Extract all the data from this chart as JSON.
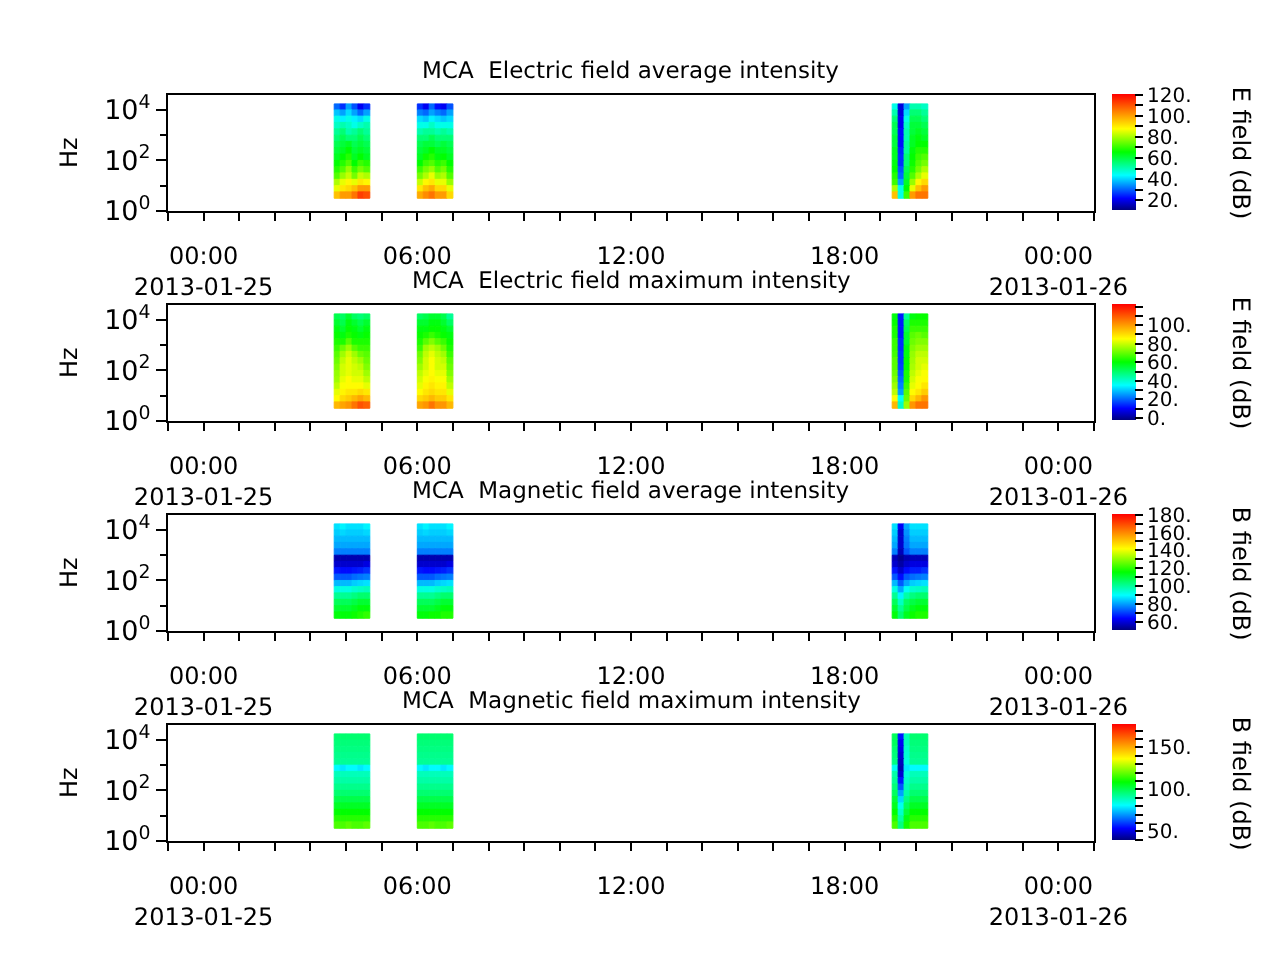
{
  "chart_data": [
    {
      "type": "heatmap",
      "title": "MCA  Electric field average intensity",
      "ylabel": "Hz",
      "clabel": "E field (dB)",
      "x": [
        "2013-01-25T03:45",
        "2013-01-25T03:55",
        "2013-01-25T04:05",
        "2013-01-25T04:15",
        "2013-01-25T04:25",
        "2013-01-25T04:35",
        "2013-01-25T04:45",
        "2013-01-25T05:55",
        "2013-01-25T06:05",
        "2013-01-25T06:15",
        "2013-01-25T06:25",
        "2013-01-25T06:35",
        "2013-01-25T06:45",
        "2013-01-25T06:55",
        "2013-01-25T07:05",
        "2013-01-25T19:15",
        "2013-01-25T19:25",
        "2013-01-25T19:35",
        "2013-01-25T19:45",
        "2013-01-25T19:55",
        "2013-01-25T20:05",
        "2013-01-25T20:15"
      ],
      "y": [
        13000,
        7500,
        4200,
        2400,
        1300,
        750,
        420,
        240,
        130,
        75,
        42,
        24,
        13,
        7.5,
        4.2
      ],
      "cells": [
        [
          30,
          25,
          35,
          28,
          20,
          25,
          null,
          null,
          25,
          20,
          30,
          22,
          20,
          28,
          null,
          null,
          45,
          18,
          35,
          50,
          50,
          48
        ],
        [
          38,
          35,
          40,
          35,
          30,
          35,
          null,
          null,
          32,
          30,
          35,
          32,
          30,
          35,
          null,
          null,
          50,
          18,
          40,
          55,
          55,
          52
        ],
        [
          45,
          42,
          45,
          42,
          40,
          45,
          null,
          null,
          40,
          38,
          42,
          40,
          38,
          40,
          null,
          null,
          55,
          20,
          45,
          58,
          58,
          55
        ],
        [
          48,
          50,
          48,
          45,
          48,
          50,
          null,
          null,
          45,
          45,
          48,
          45,
          45,
          45,
          null,
          null,
          58,
          20,
          48,
          60,
          60,
          58
        ],
        [
          52,
          55,
          50,
          52,
          55,
          52,
          null,
          null,
          50,
          52,
          52,
          50,
          52,
          50,
          null,
          null,
          58,
          22,
          50,
          60,
          62,
          60
        ],
        [
          55,
          58,
          55,
          55,
          58,
          55,
          null,
          null,
          55,
          55,
          58,
          55,
          55,
          55,
          null,
          null,
          60,
          22,
          50,
          62,
          64,
          62
        ],
        [
          58,
          60,
          62,
          58,
          60,
          58,
          null,
          null,
          58,
          60,
          60,
          58,
          60,
          58,
          null,
          null,
          60,
          22,
          52,
          62,
          65,
          65
        ],
        [
          60,
          62,
          65,
          60,
          62,
          60,
          null,
          null,
          60,
          62,
          65,
          62,
          62,
          60,
          null,
          null,
          62,
          24,
          52,
          64,
          68,
          68
        ],
        [
          62,
          65,
          68,
          62,
          65,
          62,
          null,
          null,
          62,
          66,
          68,
          64,
          65,
          62,
          null,
          null,
          62,
          25,
          55,
          65,
          70,
          72
        ],
        [
          65,
          68,
          72,
          65,
          70,
          68,
          null,
          null,
          65,
          70,
          72,
          68,
          70,
          65,
          null,
          null,
          64,
          25,
          55,
          66,
          72,
          75
        ],
        [
          68,
          72,
          78,
          70,
          75,
          72,
          null,
          null,
          70,
          75,
          78,
          72,
          75,
          68,
          null,
          null,
          65,
          28,
          58,
          68,
          75,
          80
        ],
        [
          72,
          78,
          82,
          75,
          82,
          80,
          null,
          null,
          75,
          80,
          85,
          78,
          80,
          72,
          null,
          null,
          68,
          30,
          60,
          72,
          80,
          85
        ],
        [
          80,
          85,
          88,
          85,
          90,
          88,
          null,
          null,
          82,
          88,
          90,
          85,
          85,
          78,
          null,
          null,
          70,
          35,
          62,
          78,
          88,
          92
        ],
        [
          85,
          90,
          92,
          95,
          100,
          100,
          null,
          null,
          90,
          95,
          98,
          92,
          92,
          85,
          null,
          null,
          80,
          45,
          65,
          85,
          95,
          100
        ],
        [
          95,
          100,
          100,
          105,
          112,
          110,
          null,
          null,
          98,
          102,
          105,
          100,
          100,
          92,
          null,
          null,
          95,
          45,
          70,
          100,
          105,
          105
        ]
      ],
      "xlim": [
        "2013-01-24T23:00",
        "2013-01-26T01:00"
      ],
      "xticks": [
        {
          "value": "2013-01-24T23:00",
          "label": null
        },
        {
          "value": "2013-01-25T00:00",
          "label": "00:00\n2013-01-25"
        },
        {
          "value": "2013-01-25T01:00",
          "label": null
        },
        {
          "value": "2013-01-25T02:00",
          "label": null
        },
        {
          "value": "2013-01-25T03:00",
          "label": null
        },
        {
          "value": "2013-01-25T04:00",
          "label": null
        },
        {
          "value": "2013-01-25T05:00",
          "label": null
        },
        {
          "value": "2013-01-25T06:00",
          "label": "06:00"
        },
        {
          "value": "2013-01-25T07:00",
          "label": null
        },
        {
          "value": "2013-01-25T08:00",
          "label": null
        },
        {
          "value": "2013-01-25T09:00",
          "label": null
        },
        {
          "value": "2013-01-25T10:00",
          "label": null
        },
        {
          "value": "2013-01-25T11:00",
          "label": null
        },
        {
          "value": "2013-01-25T12:00",
          "label": "12:00"
        },
        {
          "value": "2013-01-25T13:00",
          "label": null
        },
        {
          "value": "2013-01-25T14:00",
          "label": null
        },
        {
          "value": "2013-01-25T15:00",
          "label": null
        },
        {
          "value": "2013-01-25T16:00",
          "label": null
        },
        {
          "value": "2013-01-25T17:00",
          "label": null
        },
        {
          "value": "2013-01-25T18:00",
          "label": "18:00"
        },
        {
          "value": "2013-01-25T19:00",
          "label": null
        },
        {
          "value": "2013-01-25T20:00",
          "label": null
        },
        {
          "value": "2013-01-25T21:00",
          "label": null
        },
        {
          "value": "2013-01-25T22:00",
          "label": null
        },
        {
          "value": "2013-01-25T23:00",
          "label": null
        },
        {
          "value": "2013-01-26T00:00",
          "label": "00:00\n2013-01-26"
        },
        {
          "value": "2013-01-26T01:00",
          "label": null
        }
      ],
      "ylim": [
        1,
        40000
      ],
      "yticks": [
        {
          "value": 1,
          "label": "10$^{0}$"
        },
        {
          "value": 10,
          "label": null
        },
        {
          "value": 100,
          "label": "10$^{2}$"
        },
        {
          "value": 1000,
          "label": null
        },
        {
          "value": 10000,
          "label": "10$^{4}$"
        }
      ],
      "log": "y",
      "clim": [
        10,
        120
      ],
      "cticks": [
        {
          "value": 20,
          "label": "20."
        },
        {
          "value": 30,
          "label": null
        },
        {
          "value": 40,
          "label": "40."
        },
        {
          "value": 50,
          "label": null
        },
        {
          "value": 60,
          "label": "60."
        },
        {
          "value": 70,
          "label": null
        },
        {
          "value": 80,
          "label": "80."
        },
        {
          "value": 90,
          "label": null
        },
        {
          "value": 100,
          "label": "100."
        },
        {
          "value": 110,
          "label": null
        },
        {
          "value": 120,
          "label": "120."
        }
      ]
    },
    {
      "type": "heatmap",
      "title": "MCA  Electric field maximum intensity",
      "ylabel": "Hz",
      "clabel": "E field (dB)",
      "x": [
        "2013-01-25T03:45",
        "2013-01-25T03:55",
        "2013-01-25T04:05",
        "2013-01-25T04:15",
        "2013-01-25T04:25",
        "2013-01-25T04:35",
        "2013-01-25T04:45",
        "2013-01-25T05:55",
        "2013-01-25T06:05",
        "2013-01-25T06:15",
        "2013-01-25T06:25",
        "2013-01-25T06:35",
        "2013-01-25T06:45",
        "2013-01-25T06:55",
        "2013-01-25T07:05",
        "2013-01-25T19:15",
        "2013-01-25T19:25",
        "2013-01-25T19:35",
        "2013-01-25T19:45",
        "2013-01-25T19:55",
        "2013-01-25T20:05",
        "2013-01-25T20:15"
      ],
      "y": [
        13000,
        7500,
        4200,
        2400,
        1300,
        750,
        420,
        240,
        130,
        75,
        42,
        24,
        13,
        7.5,
        4.2
      ],
      "cells": [
        [
          52,
          50,
          55,
          50,
          48,
          50,
          null,
          null,
          50,
          52,
          55,
          55,
          52,
          45,
          null,
          null,
          58,
          12,
          45,
          58,
          60,
          60
        ],
        [
          55,
          52,
          58,
          55,
          52,
          55,
          null,
          null,
          55,
          55,
          58,
          58,
          55,
          50,
          null,
          null,
          60,
          12,
          50,
          62,
          62,
          62
        ],
        [
          58,
          55,
          60,
          58,
          55,
          58,
          null,
          null,
          58,
          58,
          60,
          60,
          58,
          55,
          null,
          null,
          62,
          12,
          52,
          65,
          65,
          65
        ],
        [
          60,
          58,
          62,
          60,
          58,
          60,
          null,
          null,
          60,
          62,
          65,
          62,
          60,
          58,
          null,
          null,
          62,
          12,
          55,
          68,
          70,
          68
        ],
        [
          62,
          62,
          68,
          62,
          62,
          62,
          null,
          null,
          62,
          68,
          72,
          68,
          65,
          60,
          null,
          null,
          65,
          14,
          55,
          70,
          72,
          72
        ],
        [
          65,
          70,
          75,
          68,
          65,
          65,
          null,
          null,
          65,
          75,
          78,
          75,
          70,
          62,
          null,
          null,
          65,
          14,
          58,
          72,
          75,
          75
        ],
        [
          68,
          75,
          80,
          75,
          70,
          68,
          null,
          null,
          70,
          78,
          82,
          78,
          75,
          65,
          null,
          null,
          66,
          15,
          58,
          74,
          78,
          78
        ],
        [
          70,
          78,
          82,
          78,
          75,
          70,
          null,
          null,
          72,
          80,
          84,
          80,
          78,
          68,
          null,
          null,
          68,
          15,
          60,
          75,
          80,
          80
        ],
        [
          72,
          80,
          82,
          80,
          78,
          72,
          null,
          null,
          75,
          80,
          84,
          80,
          80,
          70,
          null,
          null,
          68,
          16,
          60,
          76,
          80,
          82
        ],
        [
          74,
          80,
          82,
          80,
          80,
          75,
          null,
          null,
          78,
          82,
          85,
          82,
          82,
          72,
          null,
          null,
          70,
          18,
          62,
          78,
          82,
          84
        ],
        [
          75,
          82,
          85,
          82,
          82,
          78,
          null,
          null,
          80,
          84,
          86,
          84,
          84,
          75,
          null,
          null,
          72,
          20,
          62,
          80,
          84,
          85
        ],
        [
          78,
          84,
          85,
          85,
          85,
          82,
          null,
          null,
          82,
          86,
          88,
          86,
          86,
          78,
          null,
          null,
          75,
          22,
          65,
          82,
          85,
          88
        ],
        [
          82,
          86,
          88,
          88,
          90,
          88,
          null,
          null,
          85,
          88,
          90,
          88,
          88,
          82,
          null,
          null,
          78,
          25,
          68,
          85,
          88,
          92
        ],
        [
          85,
          90,
          92,
          95,
          98,
          95,
          null,
          null,
          90,
          92,
          95,
          92,
          92,
          88,
          null,
          null,
          85,
          35,
          70,
          90,
          95,
          100
        ],
        [
          95,
          98,
          100,
          105,
          110,
          108,
          null,
          null,
          98,
          100,
          105,
          100,
          100,
          95,
          null,
          null,
          95,
          40,
          75,
          100,
          105,
          105
        ]
      ],
      "xlim": [
        "2013-01-24T23:00",
        "2013-01-26T01:00"
      ],
      "xticks": [
        {
          "value": "2013-01-24T23:00",
          "label": null
        },
        {
          "value": "2013-01-25T00:00",
          "label": "00:00\n2013-01-25"
        },
        {
          "value": "2013-01-25T01:00",
          "label": null
        },
        {
          "value": "2013-01-25T02:00",
          "label": null
        },
        {
          "value": "2013-01-25T03:00",
          "label": null
        },
        {
          "value": "2013-01-25T04:00",
          "label": null
        },
        {
          "value": "2013-01-25T05:00",
          "label": null
        },
        {
          "value": "2013-01-25T06:00",
          "label": "06:00"
        },
        {
          "value": "2013-01-25T07:00",
          "label": null
        },
        {
          "value": "2013-01-25T08:00",
          "label": null
        },
        {
          "value": "2013-01-25T09:00",
          "label": null
        },
        {
          "value": "2013-01-25T10:00",
          "label": null
        },
        {
          "value": "2013-01-25T11:00",
          "label": null
        },
        {
          "value": "2013-01-25T12:00",
          "label": "12:00"
        },
        {
          "value": "2013-01-25T13:00",
          "label": null
        },
        {
          "value": "2013-01-25T14:00",
          "label": null
        },
        {
          "value": "2013-01-25T15:00",
          "label": null
        },
        {
          "value": "2013-01-25T16:00",
          "label": null
        },
        {
          "value": "2013-01-25T17:00",
          "label": null
        },
        {
          "value": "2013-01-25T18:00",
          "label": "18:00"
        },
        {
          "value": "2013-01-25T19:00",
          "label": null
        },
        {
          "value": "2013-01-25T20:00",
          "label": null
        },
        {
          "value": "2013-01-25T21:00",
          "label": null
        },
        {
          "value": "2013-01-25T22:00",
          "label": null
        },
        {
          "value": "2013-01-25T23:00",
          "label": null
        },
        {
          "value": "2013-01-26T00:00",
          "label": "00:00\n2013-01-26"
        },
        {
          "value": "2013-01-26T01:00",
          "label": null
        }
      ],
      "ylim": [
        1,
        40000
      ],
      "yticks": [
        {
          "value": 1,
          "label": "10$^{0}$"
        },
        {
          "value": 10,
          "label": null
        },
        {
          "value": 100,
          "label": "10$^{2}$"
        },
        {
          "value": 1000,
          "label": null
        },
        {
          "value": 10000,
          "label": "10$^{4}$"
        }
      ],
      "log": "y",
      "clim": [
        -3,
        122
      ],
      "cticks": [
        {
          "value": 0,
          "label": "0."
        },
        {
          "value": 10,
          "label": null
        },
        {
          "value": 20,
          "label": "20."
        },
        {
          "value": 30,
          "label": null
        },
        {
          "value": 40,
          "label": "40."
        },
        {
          "value": 50,
          "label": null
        },
        {
          "value": 60,
          "label": "60."
        },
        {
          "value": 70,
          "label": null
        },
        {
          "value": 80,
          "label": "80."
        },
        {
          "value": 90,
          "label": null
        },
        {
          "value": 100,
          "label": "100."
        },
        {
          "value": 110,
          "label": null
        },
        {
          "value": 120,
          "label": null
        }
      ]
    },
    {
      "type": "heatmap",
      "title": "MCA  Magnetic field average intensity",
      "ylabel": "Hz",
      "clabel": "B field (dB)",
      "x": [
        "2013-01-25T03:45",
        "2013-01-25T03:55",
        "2013-01-25T04:05",
        "2013-01-25T04:15",
        "2013-01-25T04:25",
        "2013-01-25T04:35",
        "2013-01-25T04:45",
        "2013-01-25T05:55",
        "2013-01-25T06:05",
        "2013-01-25T06:15",
        "2013-01-25T06:25",
        "2013-01-25T06:35",
        "2013-01-25T06:45",
        "2013-01-25T06:55",
        "2013-01-25T07:05",
        "2013-01-25T19:15",
        "2013-01-25T19:25",
        "2013-01-25T19:35",
        "2013-01-25T19:45",
        "2013-01-25T19:55",
        "2013-01-25T20:05",
        "2013-01-25T20:15"
      ],
      "y": [
        13000,
        7500,
        4200,
        2400,
        1300,
        750,
        420,
        240,
        130,
        75,
        42,
        24,
        13,
        7.5,
        4.2
      ],
      "cells": [
        [
          86,
          88,
          86,
          86,
          86,
          88,
          null,
          null,
          86,
          88,
          86,
          86,
          86,
          88,
          null,
          null,
          86,
          62,
          80,
          86,
          86,
          86
        ],
        [
          84,
          85,
          84,
          84,
          84,
          85,
          null,
          null,
          84,
          85,
          84,
          84,
          84,
          85,
          null,
          null,
          84,
          58,
          78,
          84,
          84,
          84
        ],
        [
          82,
          82,
          82,
          82,
          82,
          82,
          null,
          null,
          82,
          82,
          82,
          82,
          82,
          82,
          null,
          null,
          82,
          58,
          76,
          82,
          82,
          82
        ],
        [
          80,
          80,
          80,
          80,
          80,
          80,
          null,
          null,
          80,
          80,
          80,
          80,
          80,
          80,
          null,
          null,
          80,
          58,
          75,
          80,
          80,
          80
        ],
        [
          76,
          76,
          76,
          76,
          76,
          76,
          null,
          null,
          76,
          76,
          76,
          76,
          76,
          76,
          null,
          null,
          76,
          56,
          72,
          76,
          76,
          76
        ],
        [
          55,
          55,
          55,
          55,
          55,
          55,
          null,
          null,
          55,
          55,
          55,
          55,
          55,
          55,
          null,
          null,
          56,
          52,
          55,
          56,
          56,
          56
        ],
        [
          58,
          58,
          58,
          58,
          58,
          60,
          null,
          null,
          58,
          58,
          58,
          58,
          58,
          60,
          null,
          null,
          58,
          54,
          58,
          60,
          60,
          60
        ],
        [
          65,
          64,
          64,
          65,
          66,
          68,
          null,
          null,
          65,
          64,
          64,
          65,
          66,
          68,
          null,
          null,
          65,
          58,
          64,
          66,
          66,
          68
        ],
        [
          72,
          72,
          72,
          74,
          75,
          76,
          null,
          null,
          72,
          72,
          72,
          74,
          75,
          76,
          null,
          null,
          72,
          64,
          72,
          74,
          75,
          76
        ],
        [
          82,
          82,
          82,
          84,
          85,
          86,
          null,
          null,
          82,
          82,
          82,
          84,
          85,
          86,
          null,
          null,
          82,
          72,
          80,
          84,
          85,
          86
        ],
        [
          92,
          92,
          92,
          94,
          95,
          96,
          null,
          null,
          92,
          92,
          92,
          94,
          95,
          96,
          null,
          null,
          92,
          80,
          90,
          94,
          95,
          96
        ],
        [
          100,
          100,
          100,
          102,
          104,
          104,
          null,
          null,
          100,
          100,
          100,
          102,
          104,
          104,
          null,
          null,
          100,
          88,
          98,
          102,
          104,
          104
        ],
        [
          106,
          106,
          106,
          108,
          110,
          110,
          null,
          null,
          106,
          106,
          106,
          108,
          110,
          110,
          null,
          null,
          106,
          95,
          105,
          108,
          110,
          110
        ],
        [
          110,
          110,
          110,
          112,
          114,
          114,
          null,
          null,
          110,
          110,
          110,
          112,
          114,
          114,
          null,
          null,
          110,
          100,
          108,
          112,
          114,
          114
        ],
        [
          114,
          114,
          114,
          116,
          118,
          120,
          null,
          null,
          114,
          114,
          116,
          116,
          118,
          118,
          null,
          null,
          114,
          104,
          112,
          116,
          118,
          118
        ]
      ],
      "xlim": [
        "2013-01-24T23:00",
        "2013-01-26T01:00"
      ],
      "xticks": [
        {
          "value": "2013-01-24T23:00",
          "label": null
        },
        {
          "value": "2013-01-25T00:00",
          "label": "00:00\n2013-01-25"
        },
        {
          "value": "2013-01-25T01:00",
          "label": null
        },
        {
          "value": "2013-01-25T02:00",
          "label": null
        },
        {
          "value": "2013-01-25T03:00",
          "label": null
        },
        {
          "value": "2013-01-25T04:00",
          "label": null
        },
        {
          "value": "2013-01-25T05:00",
          "label": null
        },
        {
          "value": "2013-01-25T06:00",
          "label": "06:00"
        },
        {
          "value": "2013-01-25T07:00",
          "label": null
        },
        {
          "value": "2013-01-25T08:00",
          "label": null
        },
        {
          "value": "2013-01-25T09:00",
          "label": null
        },
        {
          "value": "2013-01-25T10:00",
          "label": null
        },
        {
          "value": "2013-01-25T11:00",
          "label": null
        },
        {
          "value": "2013-01-25T12:00",
          "label": "12:00"
        },
        {
          "value": "2013-01-25T13:00",
          "label": null
        },
        {
          "value": "2013-01-25T14:00",
          "label": null
        },
        {
          "value": "2013-01-25T15:00",
          "label": null
        },
        {
          "value": "2013-01-25T16:00",
          "label": null
        },
        {
          "value": "2013-01-25T17:00",
          "label": null
        },
        {
          "value": "2013-01-25T18:00",
          "label": "18:00"
        },
        {
          "value": "2013-01-25T19:00",
          "label": null
        },
        {
          "value": "2013-01-25T20:00",
          "label": null
        },
        {
          "value": "2013-01-25T21:00",
          "label": null
        },
        {
          "value": "2013-01-25T22:00",
          "label": null
        },
        {
          "value": "2013-01-25T23:00",
          "label": null
        },
        {
          "value": "2013-01-26T00:00",
          "label": "00:00\n2013-01-26"
        },
        {
          "value": "2013-01-26T01:00",
          "label": null
        }
      ],
      "ylim": [
        1,
        40000
      ],
      "yticks": [
        {
          "value": 1,
          "label": "10$^{0}$"
        },
        {
          "value": 10,
          "label": null
        },
        {
          "value": 100,
          "label": "10$^{2}$"
        },
        {
          "value": 1000,
          "label": null
        },
        {
          "value": 10000,
          "label": "10$^{4}$"
        }
      ],
      "log": "y",
      "clim": [
        50,
        180
      ],
      "cticks": [
        {
          "value": 60,
          "label": "60."
        },
        {
          "value": 70,
          "label": null
        },
        {
          "value": 80,
          "label": "80."
        },
        {
          "value": 90,
          "label": null
        },
        {
          "value": 100,
          "label": "100."
        },
        {
          "value": 110,
          "label": null
        },
        {
          "value": 120,
          "label": "120."
        },
        {
          "value": 130,
          "label": null
        },
        {
          "value": 140,
          "label": "140."
        },
        {
          "value": 150,
          "label": null
        },
        {
          "value": 160,
          "label": "160."
        },
        {
          "value": 170,
          "label": null
        },
        {
          "value": 180,
          "label": "180."
        }
      ]
    },
    {
      "type": "heatmap",
      "title": "MCA  Magnetic field maximum intensity",
      "ylabel": "Hz",
      "clabel": "B field (dB)",
      "x": [
        "2013-01-25T03:45",
        "2013-01-25T03:55",
        "2013-01-25T04:05",
        "2013-01-25T04:15",
        "2013-01-25T04:25",
        "2013-01-25T04:35",
        "2013-01-25T04:45",
        "2013-01-25T05:55",
        "2013-01-25T06:05",
        "2013-01-25T06:15",
        "2013-01-25T06:25",
        "2013-01-25T06:35",
        "2013-01-25T06:45",
        "2013-01-25T06:55",
        "2013-01-25T07:05",
        "2013-01-25T19:15",
        "2013-01-25T19:25",
        "2013-01-25T19:35",
        "2013-01-25T19:45",
        "2013-01-25T19:55",
        "2013-01-25T20:05",
        "2013-01-25T20:15"
      ],
      "y": [
        13000,
        7500,
        4200,
        2400,
        1300,
        750,
        420,
        240,
        130,
        75,
        42,
        24,
        13,
        7.5,
        4.2
      ],
      "cells": [
        [
          96,
          96,
          96,
          96,
          96,
          96,
          null,
          null,
          96,
          96,
          96,
          96,
          96,
          96,
          null,
          null,
          98,
          55,
          88,
          96,
          96,
          96
        ],
        [
          95,
          95,
          95,
          95,
          95,
          95,
          null,
          null,
          95,
          95,
          95,
          95,
          95,
          95,
          null,
          null,
          98,
          52,
          88,
          95,
          95,
          95
        ],
        [
          94,
          94,
          94,
          94,
          94,
          94,
          null,
          null,
          94,
          94,
          94,
          94,
          94,
          94,
          null,
          null,
          96,
          50,
          86,
          94,
          94,
          94
        ],
        [
          93,
          93,
          93,
          93,
          93,
          93,
          null,
          null,
          93,
          93,
          93,
          93,
          93,
          93,
          null,
          null,
          95,
          48,
          85,
          93,
          93,
          93
        ],
        [
          92,
          92,
          92,
          92,
          92,
          92,
          null,
          null,
          92,
          92,
          92,
          92,
          92,
          92,
          null,
          null,
          94,
          46,
          84,
          92,
          92,
          92
        ],
        [
          80,
          78,
          80,
          80,
          78,
          80,
          null,
          null,
          80,
          78,
          80,
          80,
          78,
          80,
          null,
          null,
          82,
          44,
          78,
          80,
          80,
          80
        ],
        [
          88,
          88,
          88,
          88,
          88,
          88,
          null,
          null,
          88,
          88,
          88,
          88,
          88,
          88,
          null,
          null,
          90,
          48,
          84,
          88,
          88,
          88
        ],
        [
          90,
          90,
          90,
          90,
          90,
          90,
          null,
          null,
          90,
          90,
          90,
          90,
          90,
          90,
          null,
          null,
          92,
          55,
          86,
          90,
          90,
          90
        ],
        [
          93,
          93,
          93,
          93,
          93,
          93,
          null,
          null,
          93,
          93,
          93,
          93,
          93,
          93,
          null,
          null,
          95,
          62,
          88,
          93,
          93,
          93
        ],
        [
          96,
          96,
          96,
          96,
          96,
          96,
          null,
          null,
          96,
          96,
          96,
          96,
          96,
          96,
          null,
          null,
          98,
          70,
          90,
          96,
          96,
          96
        ],
        [
          100,
          100,
          100,
          100,
          100,
          100,
          null,
          null,
          100,
          100,
          100,
          100,
          100,
          100,
          null,
          null,
          102,
          76,
          94,
          100,
          100,
          100
        ],
        [
          104,
          104,
          104,
          104,
          104,
          104,
          null,
          null,
          104,
          104,
          104,
          104,
          104,
          104,
          null,
          null,
          105,
          82,
          98,
          104,
          104,
          104
        ],
        [
          108,
          108,
          108,
          108,
          108,
          108,
          null,
          null,
          108,
          108,
          108,
          108,
          108,
          108,
          null,
          null,
          108,
          86,
          102,
          108,
          108,
          108
        ],
        [
          112,
          112,
          112,
          112,
          112,
          112,
          null,
          null,
          112,
          112,
          112,
          112,
          112,
          112,
          null,
          null,
          112,
          90,
          106,
          112,
          112,
          112
        ],
        [
          116,
          116,
          118,
          116,
          116,
          118,
          null,
          null,
          116,
          116,
          118,
          116,
          116,
          118,
          null,
          null,
          116,
          94,
          110,
          116,
          116,
          116
        ]
      ],
      "xlim": [
        "2013-01-24T23:00",
        "2013-01-26T01:00"
      ],
      "xticks": [
        {
          "value": "2013-01-24T23:00",
          "label": null
        },
        {
          "value": "2013-01-25T00:00",
          "label": "00:00\n2013-01-25"
        },
        {
          "value": "2013-01-25T01:00",
          "label": null
        },
        {
          "value": "2013-01-25T02:00",
          "label": null
        },
        {
          "value": "2013-01-25T03:00",
          "label": null
        },
        {
          "value": "2013-01-25T04:00",
          "label": null
        },
        {
          "value": "2013-01-25T05:00",
          "label": null
        },
        {
          "value": "2013-01-25T06:00",
          "label": "06:00"
        },
        {
          "value": "2013-01-25T07:00",
          "label": null
        },
        {
          "value": "2013-01-25T08:00",
          "label": null
        },
        {
          "value": "2013-01-25T09:00",
          "label": null
        },
        {
          "value": "2013-01-25T10:00",
          "label": null
        },
        {
          "value": "2013-01-25T11:00",
          "label": null
        },
        {
          "value": "2013-01-25T12:00",
          "label": "12:00"
        },
        {
          "value": "2013-01-25T13:00",
          "label": null
        },
        {
          "value": "2013-01-25T14:00",
          "label": null
        },
        {
          "value": "2013-01-25T15:00",
          "label": null
        },
        {
          "value": "2013-01-25T16:00",
          "label": null
        },
        {
          "value": "2013-01-25T17:00",
          "label": null
        },
        {
          "value": "2013-01-25T18:00",
          "label": "18:00"
        },
        {
          "value": "2013-01-25T19:00",
          "label": null
        },
        {
          "value": "2013-01-25T20:00",
          "label": null
        },
        {
          "value": "2013-01-25T21:00",
          "label": null
        },
        {
          "value": "2013-01-25T22:00",
          "label": null
        },
        {
          "value": "2013-01-25T23:00",
          "label": null
        },
        {
          "value": "2013-01-26T00:00",
          "label": "00:00\n2013-01-26"
        },
        {
          "value": "2013-01-26T01:00",
          "label": null
        }
      ],
      "ylim": [
        1,
        40000
      ],
      "yticks": [
        {
          "value": 1,
          "label": "10$^{0}$"
        },
        {
          "value": 10,
          "label": null
        },
        {
          "value": 100,
          "label": "10$^{2}$"
        },
        {
          "value": 1000,
          "label": null
        },
        {
          "value": 10000,
          "label": "10$^{4}$"
        }
      ],
      "log": "y",
      "clim": [
        39,
        177
      ],
      "cticks": [
        {
          "value": 40,
          "label": null
        },
        {
          "value": 50,
          "label": "50."
        },
        {
          "value": 60,
          "label": null
        },
        {
          "value": 70,
          "label": null
        },
        {
          "value": 80,
          "label": null
        },
        {
          "value": 90,
          "label": null
        },
        {
          "value": 100,
          "label": "100."
        },
        {
          "value": 110,
          "label": null
        },
        {
          "value": 120,
          "label": null
        },
        {
          "value": 130,
          "label": null
        },
        {
          "value": 140,
          "label": null
        },
        {
          "value": 150,
          "label": "150."
        },
        {
          "value": 160,
          "label": null
        },
        {
          "value": 170,
          "label": null
        }
      ]
    }
  ]
}
